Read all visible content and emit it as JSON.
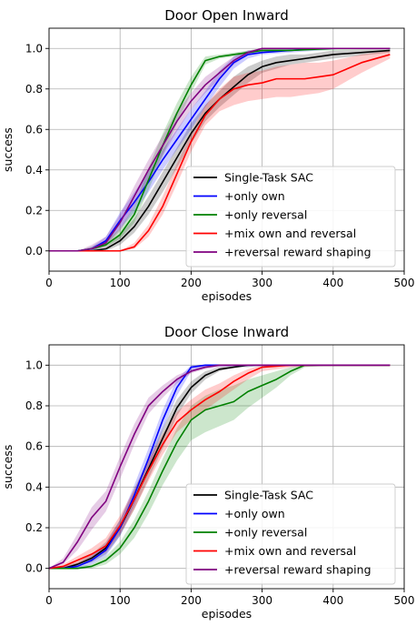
{
  "series_styles": [
    {
      "name": "Single-Task SAC",
      "color": "#000000"
    },
    {
      "name": "+only own",
      "color": "#0000ff"
    },
    {
      "name": "+only reversal",
      "color": "#008000"
    },
    {
      "name": "+mix own and reversal",
      "color": "#ff0000"
    },
    {
      "name": "+reversal reward shaping",
      "color": "#800080"
    }
  ],
  "chart_data": [
    {
      "type": "line",
      "title": "Door Open Inward",
      "xlabel": "episodes",
      "ylabel": "success",
      "xlim": [
        0,
        500
      ],
      "ylim": [
        -0.1,
        1.1
      ],
      "xticks": [
        0,
        100,
        200,
        300,
        400,
        500
      ],
      "yticks": [
        0.0,
        0.2,
        0.4,
        0.6,
        0.8,
        1.0
      ],
      "grid": true,
      "legend_position": "lower-right",
      "series": [
        {
          "name": "Single-Task SAC",
          "x": [
            0,
            40,
            60,
            80,
            100,
            120,
            140,
            160,
            180,
            200,
            220,
            240,
            260,
            280,
            300,
            320,
            340,
            360,
            380,
            400,
            480
          ],
          "y": [
            0,
            0,
            0,
            0.01,
            0.05,
            0.12,
            0.22,
            0.34,
            0.46,
            0.58,
            0.68,
            0.75,
            0.81,
            0.87,
            0.91,
            0.93,
            0.94,
            0.95,
            0.96,
            0.97,
            0.99
          ],
          "lower": [
            0,
            0,
            0,
            0,
            0.03,
            0.09,
            0.18,
            0.29,
            0.41,
            0.53,
            0.64,
            0.71,
            0.77,
            0.83,
            0.88,
            0.9,
            0.92,
            0.93,
            0.94,
            0.95,
            0.98
          ],
          "upper": [
            0,
            0,
            0,
            0.02,
            0.08,
            0.16,
            0.27,
            0.39,
            0.51,
            0.63,
            0.72,
            0.79,
            0.86,
            0.91,
            0.94,
            0.96,
            0.97,
            0.97,
            0.98,
            0.99,
            1.0
          ]
        },
        {
          "name": "+only own",
          "x": [
            0,
            40,
            60,
            80,
            100,
            120,
            140,
            160,
            180,
            200,
            220,
            240,
            260,
            280,
            300,
            340,
            380,
            420,
            480
          ],
          "y": [
            0,
            0,
            0.01,
            0.05,
            0.15,
            0.24,
            0.34,
            0.45,
            0.55,
            0.65,
            0.75,
            0.85,
            0.93,
            0.97,
            0.98,
            0.99,
            1.0,
            1.0,
            1.0
          ],
          "lower": [
            0,
            0,
            0,
            0.03,
            0.11,
            0.19,
            0.29,
            0.4,
            0.5,
            0.6,
            0.71,
            0.81,
            0.9,
            0.95,
            0.97,
            0.98,
            0.99,
            1.0,
            1.0
          ],
          "upper": [
            0,
            0,
            0.02,
            0.07,
            0.19,
            0.29,
            0.39,
            0.5,
            0.6,
            0.7,
            0.79,
            0.89,
            0.96,
            0.99,
            0.99,
            1.0,
            1.0,
            1.0,
            1.0
          ]
        },
        {
          "name": "+only reversal",
          "x": [
            0,
            40,
            60,
            80,
            100,
            120,
            140,
            160,
            180,
            200,
            220,
            240,
            260,
            280,
            300,
            340,
            400,
            480
          ],
          "y": [
            0,
            0,
            0.01,
            0.03,
            0.08,
            0.18,
            0.35,
            0.52,
            0.68,
            0.82,
            0.94,
            0.96,
            0.97,
            0.98,
            0.99,
            0.99,
            1.0,
            1.0
          ],
          "lower": [
            0,
            0,
            0,
            0.02,
            0.06,
            0.14,
            0.3,
            0.47,
            0.63,
            0.78,
            0.92,
            0.95,
            0.96,
            0.97,
            0.98,
            0.99,
            0.99,
            1.0
          ],
          "upper": [
            0,
            0,
            0.02,
            0.05,
            0.11,
            0.22,
            0.41,
            0.58,
            0.73,
            0.86,
            0.96,
            0.97,
            0.98,
            0.99,
            1.0,
            1.0,
            1.0,
            1.0
          ]
        },
        {
          "name": "+mix own and reversal",
          "x": [
            0,
            40,
            60,
            80,
            100,
            120,
            140,
            160,
            180,
            200,
            220,
            240,
            260,
            280,
            300,
            320,
            340,
            360,
            380,
            400,
            440,
            480
          ],
          "y": [
            0,
            0,
            0,
            0,
            0,
            0.02,
            0.1,
            0.22,
            0.38,
            0.54,
            0.67,
            0.75,
            0.8,
            0.82,
            0.83,
            0.85,
            0.85,
            0.85,
            0.86,
            0.87,
            0.93,
            0.97
          ],
          "lower": [
            0,
            0,
            0,
            0,
            0,
            0.01,
            0.07,
            0.18,
            0.33,
            0.49,
            0.62,
            0.69,
            0.72,
            0.74,
            0.75,
            0.76,
            0.76,
            0.77,
            0.78,
            0.8,
            0.88,
            0.95
          ],
          "upper": [
            0,
            0,
            0,
            0,
            0,
            0.04,
            0.13,
            0.27,
            0.43,
            0.58,
            0.72,
            0.8,
            0.86,
            0.88,
            0.89,
            0.91,
            0.92,
            0.93,
            0.93,
            0.94,
            0.97,
            0.99
          ]
        },
        {
          "name": "+reversal reward shaping",
          "x": [
            0,
            40,
            60,
            80,
            100,
            120,
            140,
            160,
            180,
            200,
            220,
            240,
            260,
            280,
            300,
            340,
            400,
            480
          ],
          "y": [
            0,
            0,
            0.01,
            0.04,
            0.14,
            0.27,
            0.4,
            0.52,
            0.64,
            0.74,
            0.82,
            0.88,
            0.94,
            0.98,
            1.0,
            1.0,
            1.0,
            1.0
          ],
          "lower": [
            0,
            0,
            0,
            0.02,
            0.1,
            0.22,
            0.35,
            0.47,
            0.59,
            0.7,
            0.78,
            0.85,
            0.92,
            0.97,
            0.99,
            1.0,
            1.0,
            1.0
          ],
          "upper": [
            0,
            0,
            0.03,
            0.07,
            0.18,
            0.32,
            0.45,
            0.57,
            0.69,
            0.78,
            0.86,
            0.91,
            0.96,
            0.99,
            1.0,
            1.0,
            1.0,
            1.0
          ]
        }
      ]
    },
    {
      "type": "line",
      "title": "Door Close Inward",
      "xlabel": "episodes",
      "ylabel": "success",
      "xlim": [
        0,
        500
      ],
      "ylim": [
        -0.1,
        1.1
      ],
      "xticks": [
        0,
        100,
        200,
        300,
        400,
        500
      ],
      "yticks": [
        0.0,
        0.2,
        0.4,
        0.6,
        0.8,
        1.0
      ],
      "grid": true,
      "legend_position": "lower-right",
      "series": [
        {
          "name": "Single-Task SAC",
          "x": [
            0,
            20,
            40,
            60,
            80,
            100,
            120,
            140,
            160,
            180,
            200,
            220,
            240,
            260,
            280,
            300,
            340,
            400,
            480
          ],
          "y": [
            0,
            0,
            0.02,
            0.05,
            0.1,
            0.2,
            0.34,
            0.49,
            0.64,
            0.79,
            0.89,
            0.95,
            0.98,
            0.99,
            1.0,
            1.0,
            1.0,
            1.0,
            1.0
          ],
          "lower": [
            0,
            0,
            0.01,
            0.03,
            0.07,
            0.16,
            0.29,
            0.44,
            0.59,
            0.75,
            0.86,
            0.93,
            0.97,
            0.99,
            0.99,
            1.0,
            1.0,
            1.0,
            1.0
          ],
          "upper": [
            0,
            0.01,
            0.03,
            0.07,
            0.13,
            0.24,
            0.39,
            0.54,
            0.69,
            0.83,
            0.92,
            0.97,
            0.99,
            1.0,
            1.0,
            1.0,
            1.0,
            1.0,
            1.0
          ]
        },
        {
          "name": "+only own",
          "x": [
            0,
            20,
            40,
            60,
            80,
            100,
            120,
            140,
            160,
            180,
            200,
            220,
            240,
            280,
            340,
            400,
            480
          ],
          "y": [
            0,
            0,
            0.01,
            0.04,
            0.09,
            0.2,
            0.36,
            0.54,
            0.73,
            0.89,
            0.99,
            1.0,
            1.0,
            1.0,
            1.0,
            1.0,
            1.0
          ],
          "lower": [
            0,
            0,
            0,
            0.02,
            0.06,
            0.16,
            0.31,
            0.49,
            0.68,
            0.85,
            0.97,
            0.99,
            1.0,
            1.0,
            1.0,
            1.0,
            1.0
          ],
          "upper": [
            0,
            0.01,
            0.02,
            0.06,
            0.12,
            0.24,
            0.41,
            0.59,
            0.78,
            0.93,
            1.0,
            1.0,
            1.0,
            1.0,
            1.0,
            1.0,
            1.0
          ]
        },
        {
          "name": "+only reversal",
          "x": [
            0,
            20,
            40,
            60,
            80,
            100,
            120,
            140,
            160,
            180,
            200,
            220,
            240,
            260,
            280,
            300,
            320,
            340,
            360,
            400,
            480
          ],
          "y": [
            0,
            0,
            0,
            0.01,
            0.04,
            0.1,
            0.2,
            0.33,
            0.48,
            0.62,
            0.73,
            0.78,
            0.8,
            0.82,
            0.87,
            0.9,
            0.93,
            0.97,
            1.0,
            1.0,
            1.0
          ],
          "lower": [
            0,
            0,
            0,
            0,
            0.02,
            0.07,
            0.15,
            0.27,
            0.41,
            0.53,
            0.63,
            0.67,
            0.7,
            0.73,
            0.79,
            0.84,
            0.89,
            0.95,
            0.99,
            1.0,
            1.0
          ],
          "upper": [
            0,
            0,
            0.01,
            0.02,
            0.06,
            0.13,
            0.24,
            0.38,
            0.54,
            0.69,
            0.8,
            0.85,
            0.88,
            0.9,
            0.93,
            0.95,
            0.97,
            0.99,
            1.0,
            1.0,
            1.0
          ]
        },
        {
          "name": "+mix own and reversal",
          "x": [
            0,
            20,
            40,
            60,
            80,
            100,
            120,
            140,
            160,
            180,
            200,
            220,
            240,
            260,
            280,
            300,
            340,
            400,
            480
          ],
          "y": [
            0,
            0.01,
            0.04,
            0.07,
            0.11,
            0.21,
            0.34,
            0.48,
            0.61,
            0.72,
            0.78,
            0.83,
            0.87,
            0.92,
            0.96,
            0.99,
            1.0,
            1.0,
            1.0
          ],
          "lower": [
            0,
            0,
            0.02,
            0.05,
            0.08,
            0.17,
            0.29,
            0.43,
            0.56,
            0.67,
            0.73,
            0.78,
            0.83,
            0.88,
            0.93,
            0.97,
            0.99,
            1.0,
            1.0
          ],
          "upper": [
            0,
            0.02,
            0.06,
            0.1,
            0.15,
            0.26,
            0.39,
            0.53,
            0.66,
            0.77,
            0.83,
            0.88,
            0.91,
            0.95,
            0.98,
            1.0,
            1.0,
            1.0,
            1.0
          ]
        },
        {
          "name": "+reversal reward shaping",
          "x": [
            0,
            20,
            40,
            60,
            80,
            100,
            120,
            140,
            160,
            180,
            200,
            220,
            240,
            280,
            340,
            400,
            480
          ],
          "y": [
            0,
            0.03,
            0.13,
            0.25,
            0.33,
            0.5,
            0.66,
            0.8,
            0.87,
            0.93,
            0.97,
            0.99,
            1.0,
            1.0,
            1.0,
            1.0,
            1.0
          ],
          "lower": [
            0,
            0.02,
            0.09,
            0.19,
            0.28,
            0.44,
            0.61,
            0.76,
            0.84,
            0.91,
            0.96,
            0.98,
            0.99,
            1.0,
            1.0,
            1.0,
            1.0
          ],
          "upper": [
            0,
            0.05,
            0.17,
            0.3,
            0.38,
            0.55,
            0.71,
            0.84,
            0.9,
            0.95,
            0.98,
            1.0,
            1.0,
            1.0,
            1.0,
            1.0,
            1.0
          ]
        }
      ]
    }
  ]
}
